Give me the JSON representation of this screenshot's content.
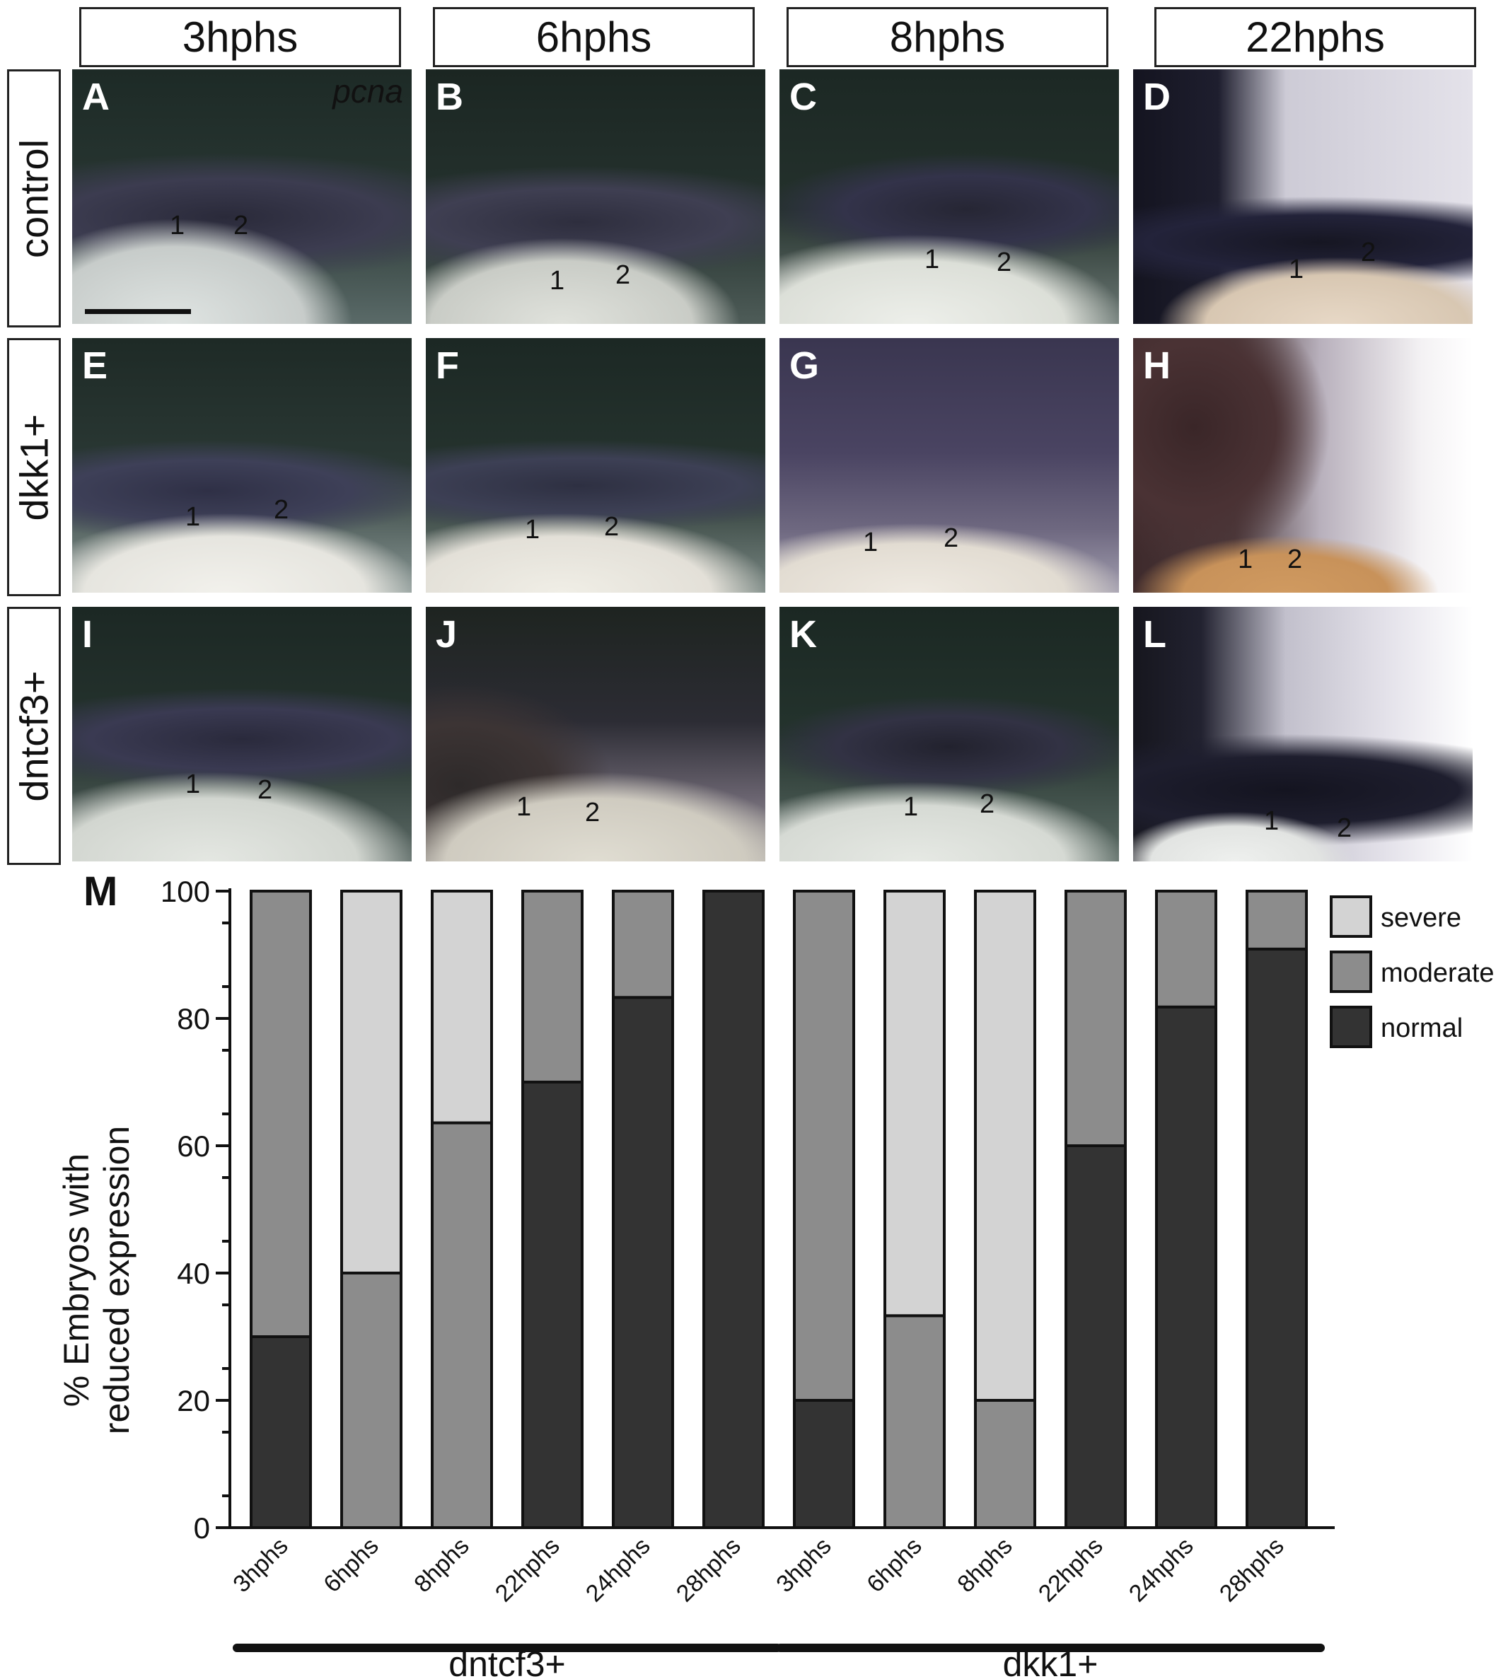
{
  "timepoints": [
    "3hphs",
    "6hphs",
    "8hphs",
    "22hphs"
  ],
  "conditions": [
    "control",
    "dkk1+",
    "dntcf3+"
  ],
  "gene_label": "pcna",
  "panels": [
    {
      "letter": "A",
      "n1": "1",
      "n2": "2"
    },
    {
      "letter": "B",
      "n1": "1",
      "n2": "2"
    },
    {
      "letter": "C",
      "n1": "1",
      "n2": "2"
    },
    {
      "letter": "D",
      "n1": "1",
      "n2": "2"
    },
    {
      "letter": "E",
      "n1": "1",
      "n2": "2"
    },
    {
      "letter": "F",
      "n1": "1",
      "n2": "2"
    },
    {
      "letter": "G",
      "n1": "1",
      "n2": "2"
    },
    {
      "letter": "H",
      "n1": "1",
      "n2": "2"
    },
    {
      "letter": "I",
      "n1": "1",
      "n2": "2"
    },
    {
      "letter": "J",
      "n1": "1",
      "n2": "2"
    },
    {
      "letter": "K",
      "n1": "1",
      "n2": "2"
    },
    {
      "letter": "L",
      "n1": "1",
      "n2": "2"
    }
  ],
  "chart_panel_letter": "M",
  "chart_data": {
    "type": "bar",
    "stacked": true,
    "categories": [
      "3hphs",
      "6hphs",
      "8hphs",
      "22hphs",
      "24hphs",
      "28hphs",
      "3hphs",
      "6hphs",
      "8hphs",
      "22hphs",
      "24hphs",
      "28hphs"
    ],
    "groups": [
      {
        "label": "dntcf3+",
        "range": [
          0,
          5
        ]
      },
      {
        "label": "dkk1+",
        "range": [
          6,
          11
        ]
      }
    ],
    "series": [
      {
        "name": "normal",
        "color": "#333333",
        "values": [
          30,
          0,
          0,
          70,
          83.3,
          100,
          20,
          0,
          0,
          60,
          81.8,
          90.9
        ]
      },
      {
        "name": "moderate",
        "color": "#8c8c8c",
        "values": [
          70,
          40,
          63.6,
          30,
          16.7,
          0,
          80,
          33.3,
          20,
          40,
          18.2,
          9.1
        ]
      },
      {
        "name": "severe",
        "color": "#d3d3d3",
        "values": [
          0,
          60,
          36.4,
          0,
          0,
          0,
          0,
          66.7,
          80,
          0,
          0,
          0
        ]
      }
    ],
    "legend_order": [
      "severe",
      "moderate",
      "normal"
    ],
    "ylabel": "% Embryos with reduced expression",
    "ylabel_lines": [
      "% Embryos with",
      "reduced expression"
    ],
    "ylim": [
      0,
      100
    ],
    "yticks": [
      0,
      20,
      40,
      60,
      80,
      100
    ],
    "legend_position": "top-right",
    "grid": false
  }
}
